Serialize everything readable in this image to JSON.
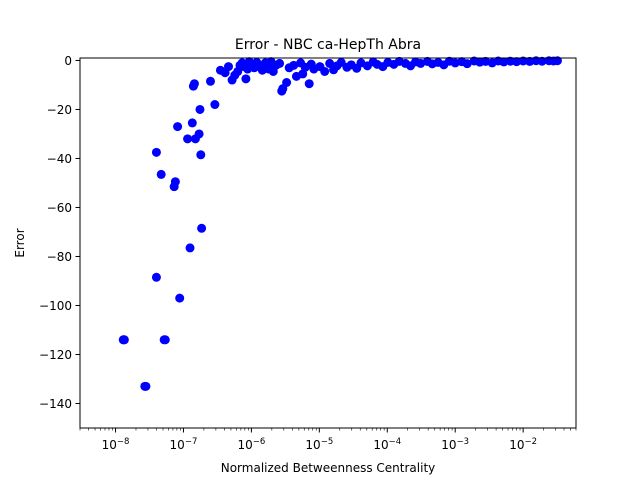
{
  "chart_data": {
    "type": "scatter",
    "title": "Error - NBC ca-HepTh Abra",
    "xlabel": "Normalized Betweenness Centrality",
    "ylabel": "Error",
    "xscale": "log",
    "xlim": [
      3e-09,
      0.06
    ],
    "ylim": [
      -150,
      1
    ],
    "grid": false,
    "legend": "none",
    "marker_color": "#0000ff",
    "x_ticks": [
      {
        "value": 1e-08,
        "base": "10",
        "exp": "−8"
      },
      {
        "value": 1e-07,
        "base": "10",
        "exp": "−7"
      },
      {
        "value": 1e-06,
        "base": "10",
        "exp": "−6"
      },
      {
        "value": 1e-05,
        "base": "10",
        "exp": "−5"
      },
      {
        "value": 0.0001,
        "base": "10",
        "exp": "−4"
      },
      {
        "value": 0.001,
        "base": "10",
        "exp": "−3"
      },
      {
        "value": 0.01,
        "base": "10",
        "exp": "−2"
      }
    ],
    "y_ticks": [
      {
        "value": 0,
        "label": "0"
      },
      {
        "value": -20,
        "label": "−20"
      },
      {
        "value": -40,
        "label": "−40"
      },
      {
        "value": -60,
        "label": "−60"
      },
      {
        "value": -80,
        "label": "−80"
      },
      {
        "value": -100,
        "label": "−100"
      },
      {
        "value": -120,
        "label": "−120"
      },
      {
        "value": -140,
        "label": "−140"
      }
    ],
    "points": [
      [
        1.3e-08,
        -114
      ],
      [
        1.32e-08,
        -114
      ],
      [
        1.35e-08,
        -114
      ],
      [
        2.7e-08,
        -133
      ],
      [
        2.8e-08,
        -133
      ],
      [
        4e-08,
        -37.5
      ],
      [
        4e-08,
        -88.5
      ],
      [
        4.7e-08,
        -46.5
      ],
      [
        5.2e-08,
        -114
      ],
      [
        5.4e-08,
        -114
      ],
      [
        7.3e-08,
        -51.5
      ],
      [
        7.6e-08,
        -49.5
      ],
      [
        8.2e-08,
        -27
      ],
      [
        8.8e-08,
        -97
      ],
      [
        1.15e-07,
        -32
      ],
      [
        1.25e-07,
        -76.5
      ],
      [
        1.35e-07,
        -25.5
      ],
      [
        1.4e-07,
        -10.5
      ],
      [
        1.45e-07,
        -9.5
      ],
      [
        1.5e-07,
        -32
      ],
      [
        1.7e-07,
        -30
      ],
      [
        1.75e-07,
        -20
      ],
      [
        1.8e-07,
        -38.5
      ],
      [
        1.85e-07,
        -68.5
      ],
      [
        2.5e-07,
        -8.5
      ],
      [
        2.9e-07,
        -18
      ],
      [
        3.5e-07,
        -4
      ],
      [
        4.1e-07,
        -5
      ],
      [
        4.6e-07,
        -2.5
      ],
      [
        5.2e-07,
        -8
      ],
      [
        5.7e-07,
        -6
      ],
      [
        6.3e-07,
        -4.5
      ],
      [
        6.8e-07,
        -2
      ],
      [
        7.3e-07,
        -1
      ],
      [
        7.8e-07,
        -2.5
      ],
      [
        8.3e-07,
        -7.5
      ],
      [
        8.8e-07,
        -3.5
      ],
      [
        9.3e-07,
        -0.5
      ],
      [
        1.02e-06,
        -1.5
      ],
      [
        1.1e-06,
        -3
      ],
      [
        1.2e-06,
        -0.8
      ],
      [
        1.3e-06,
        -2.5
      ],
      [
        1.45e-06,
        -4
      ],
      [
        1.6e-06,
        -1
      ],
      [
        1.8e-06,
        -3.5
      ],
      [
        1.95e-06,
        -0.5
      ],
      [
        2.1e-06,
        -4.5
      ],
      [
        2.3e-06,
        -2
      ],
      [
        2.6e-06,
        -1.2
      ],
      [
        2.8e-06,
        -12.5
      ],
      [
        2.9e-06,
        -11.5
      ],
      [
        3.3e-06,
        -9
      ],
      [
        3.6e-06,
        -3
      ],
      [
        4.2e-06,
        -2
      ],
      [
        4.6e-06,
        -6.5
      ],
      [
        5.3e-06,
        -1
      ],
      [
        5.7e-06,
        -5.5
      ],
      [
        6.2e-06,
        -2.8
      ],
      [
        7.1e-06,
        -9.5
      ],
      [
        7.6e-06,
        -1.5
      ],
      [
        8.3e-06,
        -3.5
      ],
      [
        1.02e-05,
        -2.5
      ],
      [
        1.2e-05,
        -4.5
      ],
      [
        1.42e-05,
        -1.2
      ],
      [
        1.62e-05,
        -3.8
      ],
      [
        1.82e-05,
        -2.2
      ],
      [
        2.1e-05,
        -0.8
      ],
      [
        2.55e-05,
        -2.8
      ],
      [
        2.95e-05,
        -1.8
      ],
      [
        3.55e-05,
        -3.2
      ],
      [
        4.1e-05,
        -1
      ],
      [
        5.1e-05,
        -2.2
      ],
      [
        6.2e-05,
        -0.6
      ],
      [
        7.1e-05,
        -1.6
      ],
      [
        8.6e-05,
        -2.5
      ],
      [
        0.000102,
        -0.8
      ],
      [
        0.000125,
        -1.6
      ],
      [
        0.00015,
        -0.4
      ],
      [
        0.000185,
        -1.2
      ],
      [
        0.00022,
        -2.2
      ],
      [
        0.00026,
        -0.6
      ],
      [
        0.00031,
        -1.2
      ],
      [
        0.00039,
        -0.4
      ],
      [
        0.00046,
        -1.4
      ],
      [
        0.00056,
        -0.8
      ],
      [
        0.00068,
        -1.8
      ],
      [
        0.00082,
        -0.3
      ],
      [
        0.001,
        -1
      ],
      [
        0.00125,
        -0.5
      ],
      [
        0.0015,
        -1.3
      ],
      [
        0.0019,
        -0.2
      ],
      [
        0.0023,
        -0.7
      ],
      [
        0.0028,
        -0.4
      ],
      [
        0.0035,
        -1
      ],
      [
        0.0043,
        -0.2
      ],
      [
        0.0052,
        -0.6
      ],
      [
        0.0065,
        -0.3
      ],
      [
        0.008,
        -0.5
      ],
      [
        0.01,
        -0.2
      ],
      [
        0.0125,
        -0.4
      ],
      [
        0.0155,
        -0.1
      ],
      [
        0.019,
        -0.3
      ],
      [
        0.024,
        -0.1
      ],
      [
        0.028,
        -0.2
      ],
      [
        0.032,
        -0.1
      ]
    ]
  }
}
